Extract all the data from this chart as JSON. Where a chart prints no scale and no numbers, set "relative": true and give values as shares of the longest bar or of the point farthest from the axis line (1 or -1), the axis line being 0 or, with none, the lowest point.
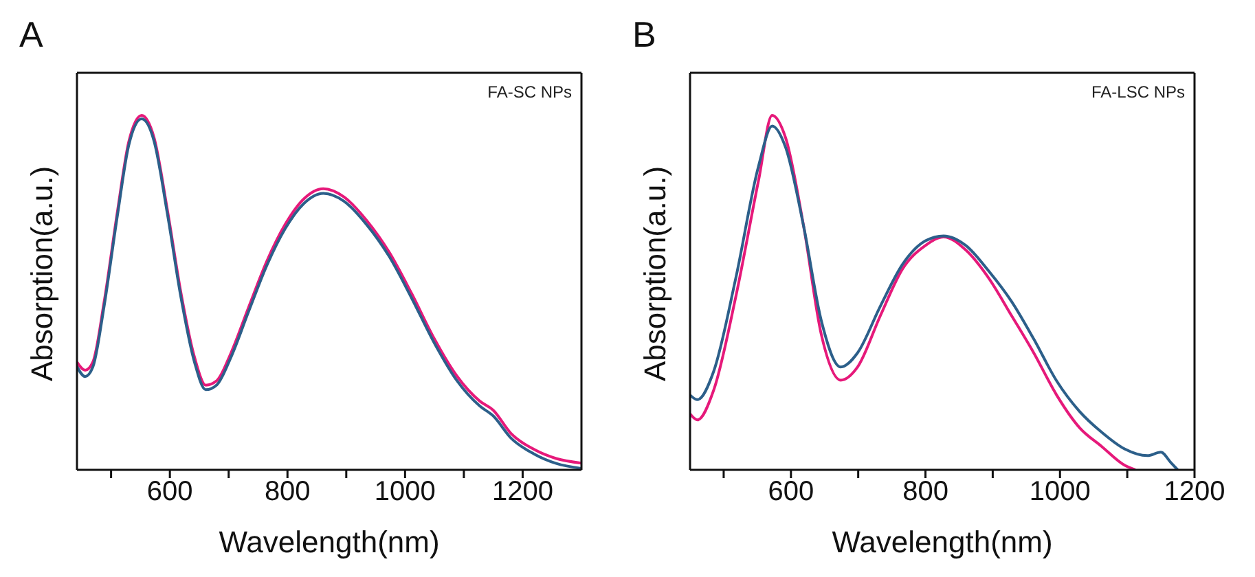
{
  "chart_data": [
    {
      "type": "line",
      "title": "A",
      "xlabel": "Wavelength(nm)",
      "ylabel": "Absorption(a.u.)",
      "annotations": [
        "FA-SC NPs"
      ],
      "relative": true,
      "xlim": [
        442,
        1300
      ],
      "xticks": [
        {
          "value": 500,
          "label": null
        },
        600,
        {
          "value": 700,
          "label": null
        },
        800,
        {
          "value": 900,
          "label": null
        },
        1000,
        {
          "value": 1100,
          "label": null
        },
        1200
      ],
      "marker": "none",
      "line_style": "solid",
      "series": [
        {
          "color": "#e6197a",
          "x": [
            442,
            456,
            469,
            488,
            511,
            530,
            552,
            573,
            596,
            619,
            642,
            661,
            680,
            704,
            734,
            765,
            796,
            827,
            861,
            896,
            934,
            973,
            1011,
            1050,
            1088,
            1127,
            1150,
            1180,
            1219,
            1257,
            1300
          ],
          "values": [
            0.304,
            0.281,
            0.304,
            0.472,
            0.731,
            0.925,
            1.0,
            0.938,
            0.731,
            0.498,
            0.317,
            0.239,
            0.252,
            0.33,
            0.459,
            0.589,
            0.692,
            0.763,
            0.793,
            0.77,
            0.705,
            0.614,
            0.498,
            0.369,
            0.265,
            0.194,
            0.168,
            0.103,
            0.058,
            0.032,
            0.019
          ]
        },
        {
          "color": "#2c5f8a",
          "x": [
            442,
            456,
            469,
            488,
            511,
            530,
            552,
            573,
            596,
            619,
            642,
            661,
            680,
            704,
            734,
            765,
            796,
            827,
            861,
            896,
            934,
            973,
            1011,
            1050,
            1088,
            1127,
            1150,
            1180,
            1219,
            1257,
            1300
          ],
          "values": [
            0.291,
            0.263,
            0.29,
            0.46,
            0.72,
            0.915,
            0.99,
            0.928,
            0.72,
            0.485,
            0.303,
            0.226,
            0.24,
            0.318,
            0.447,
            0.577,
            0.68,
            0.75,
            0.78,
            0.758,
            0.693,
            0.602,
            0.485,
            0.357,
            0.252,
            0.18,
            0.152,
            0.09,
            0.045,
            0.018,
            0.004
          ]
        }
      ]
    },
    {
      "type": "line",
      "title": "B",
      "xlabel": "Wavelength(nm)",
      "ylabel": "Absorption(a.u.)",
      "annotations": [
        "FA-LSC NPs"
      ],
      "relative": true,
      "xlim": [
        450,
        1200
      ],
      "xticks": [
        {
          "value": 500,
          "label": null
        },
        600,
        {
          "value": 700,
          "label": null
        },
        800,
        {
          "value": 900,
          "label": null
        },
        1000,
        {
          "value": 1100,
          "label": null
        },
        1200
      ],
      "marker": "none",
      "line_style": "solid",
      "series": [
        {
          "color": "#e6197a",
          "x": [
            450,
            461,
            485,
            518,
            552,
            572,
            592,
            619,
            645,
            674,
            699,
            733,
            766,
            800,
            827,
            860,
            894,
            928,
            961,
            995,
            1029,
            1062,
            1096,
            1112
          ],
          "values": [
            0.158,
            0.141,
            0.224,
            0.488,
            0.818,
            1.0,
            0.937,
            0.686,
            0.383,
            0.253,
            0.29,
            0.435,
            0.567,
            0.633,
            0.657,
            0.62,
            0.541,
            0.435,
            0.33,
            0.211,
            0.119,
            0.066,
            0.013,
            0
          ]
        },
        {
          "color": "#2c5f8a",
          "x": [
            450,
            461,
            485,
            518,
            552,
            572,
            592,
            619,
            645,
            674,
            699,
            733,
            766,
            800,
            827,
            860,
            894,
            928,
            961,
            995,
            1029,
            1062,
            1096,
            1130,
            1150,
            1165,
            1175
          ],
          "values": [
            0.211,
            0.198,
            0.277,
            0.541,
            0.858,
            0.97,
            0.91,
            0.686,
            0.422,
            0.29,
            0.33,
            0.462,
            0.58,
            0.646,
            0.66,
            0.633,
            0.561,
            0.475,
            0.369,
            0.251,
            0.165,
            0.106,
            0.059,
            0.04,
            0.05,
            0.02,
            0
          ]
        }
      ]
    }
  ]
}
